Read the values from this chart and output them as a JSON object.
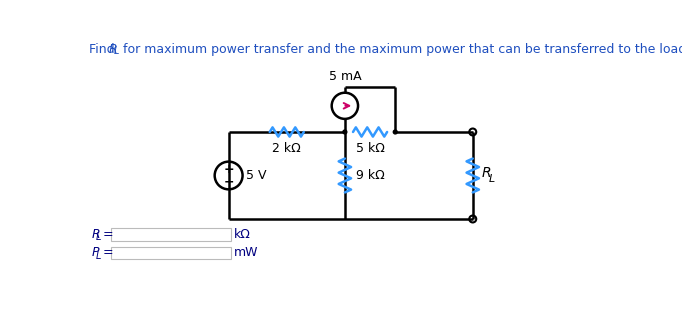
{
  "title_plain": "Find R",
  "title_sub": "L",
  "title_rest": " for maximum power transfer and the maximum power that can be transferred to the load in the figure below.",
  "title_color": "#1F4FBF",
  "background_color": "#ffffff",
  "wire_color": "#000000",
  "resistor_color": "#3399FF",
  "labels": {
    "current_source": "5 mA",
    "R2k": "2 kΩ",
    "R5k": "5 kΩ",
    "R9k": "9 kΩ",
    "RL": "R",
    "RL_sub": "L",
    "voltage": "5 V"
  },
  "RL_label": "R",
  "RL_label_sub": "L",
  "RL_unit": "kΩ",
  "PL_label": "P",
  "PL_label_sub": "L",
  "PL_unit": "mW",
  "answer_label_color": "#000080",
  "unit_color": "#000080"
}
